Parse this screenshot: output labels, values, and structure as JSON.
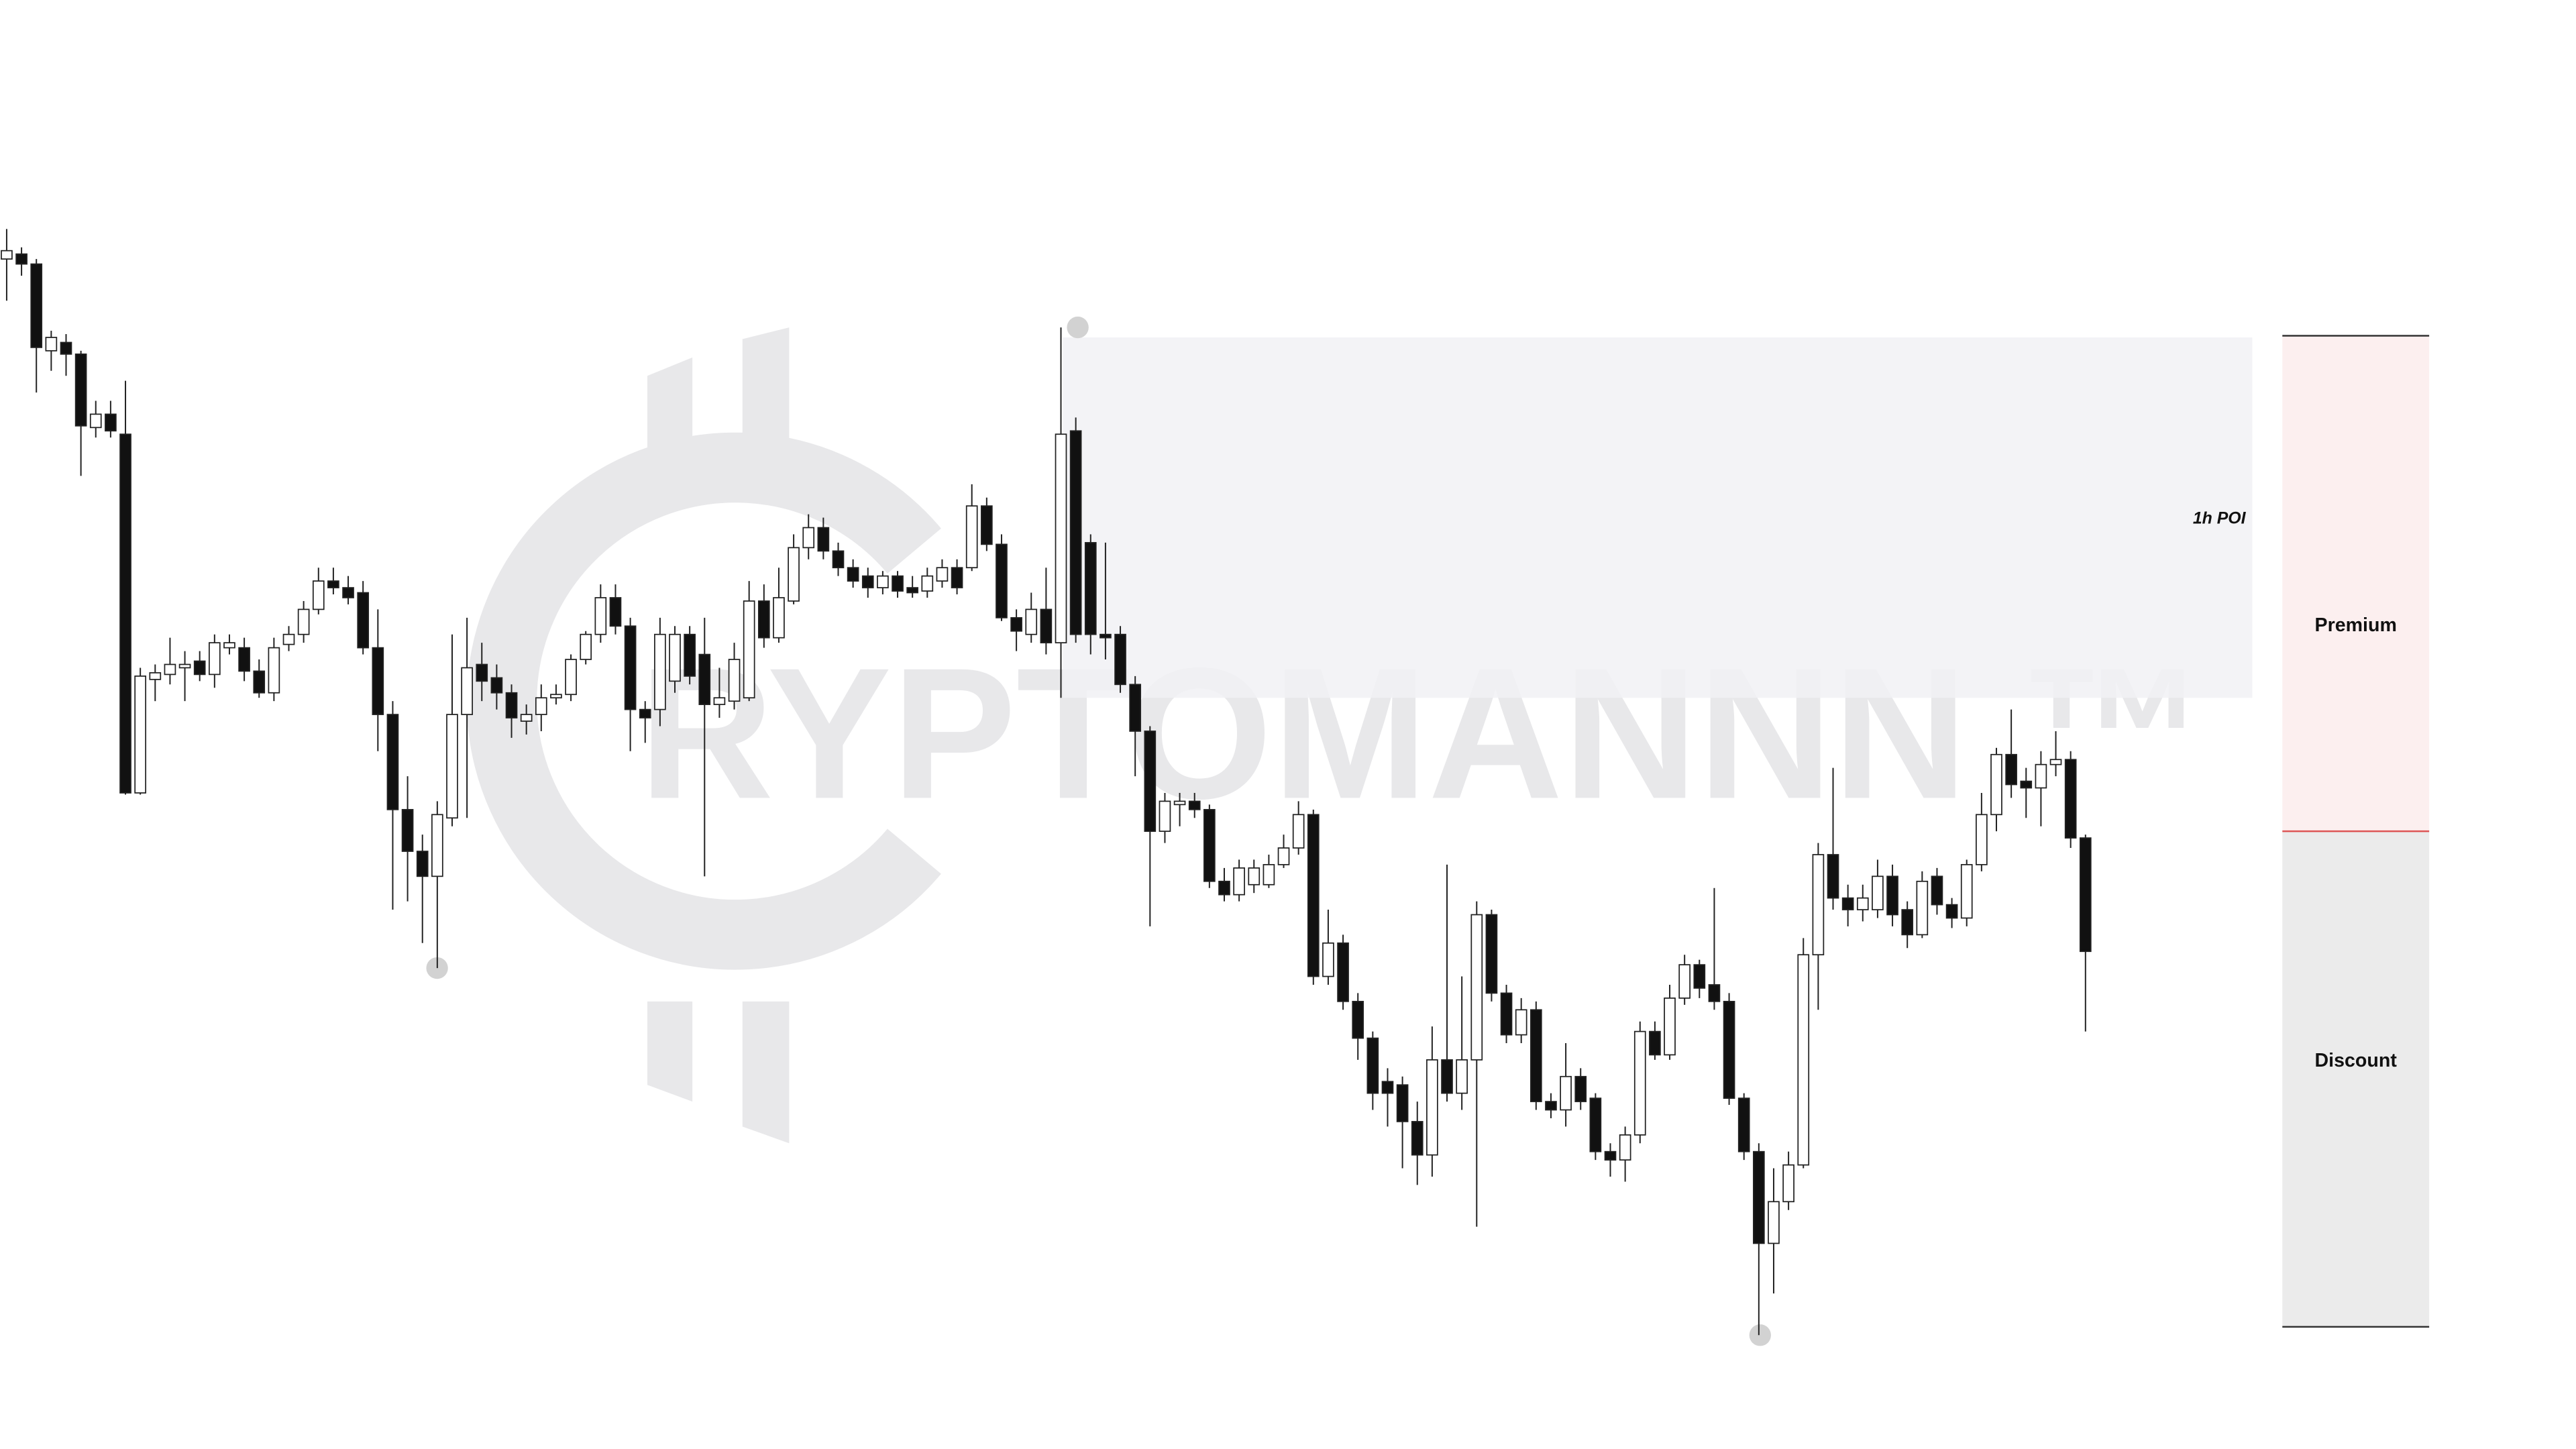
{
  "chart_data": {
    "type": "candlestick",
    "watermark": "RYPTOMANNN ™",
    "poi_label": "1h POI",
    "zones": [
      "Premium",
      "Discount"
    ],
    "up_color": "#ffffff",
    "down_color": "#111111",
    "wick_color": "#222222",
    "ylim": [
      0,
      868
    ],
    "ohlc": [
      [
        713,
        731,
        688,
        718
      ],
      [
        716,
        720,
        703,
        710
      ],
      [
        710,
        713,
        633,
        660
      ],
      [
        658,
        670,
        646,
        666
      ],
      [
        663,
        668,
        643,
        656
      ],
      [
        656,
        658,
        583,
        613
      ],
      [
        612,
        628,
        606,
        620
      ],
      [
        620,
        628,
        606,
        610
      ],
      [
        608,
        640,
        392,
        393
      ],
      [
        393,
        468,
        392,
        463
      ],
      [
        461,
        470,
        448,
        465
      ],
      [
        464,
        486,
        458,
        470
      ],
      [
        468,
        478,
        448,
        470
      ],
      [
        472,
        478,
        460,
        464
      ],
      [
        464,
        488,
        456,
        483
      ],
      [
        480,
        488,
        476,
        483
      ],
      [
        480,
        486,
        460,
        466
      ],
      [
        466,
        473,
        450,
        453
      ],
      [
        453,
        486,
        448,
        480
      ],
      [
        482,
        493,
        478,
        488
      ],
      [
        488,
        508,
        483,
        503
      ],
      [
        503,
        528,
        500,
        520
      ],
      [
        520,
        528,
        512,
        516
      ],
      [
        516,
        523,
        506,
        510
      ],
      [
        513,
        520,
        476,
        480
      ],
      [
        480,
        503,
        418,
        440
      ],
      [
        440,
        448,
        323,
        383
      ],
      [
        383,
        403,
        328,
        358
      ],
      [
        358,
        368,
        303,
        343
      ],
      [
        343,
        388,
        288,
        380
      ],
      [
        378,
        488,
        373,
        440
      ],
      [
        440,
        498,
        378,
        468
      ],
      [
        470,
        483,
        448,
        460
      ],
      [
        462,
        470,
        443,
        453
      ],
      [
        453,
        458,
        426,
        438
      ],
      [
        436,
        446,
        428,
        440
      ],
      [
        440,
        458,
        430,
        450
      ],
      [
        450,
        458,
        446,
        452
      ],
      [
        452,
        476,
        448,
        473
      ],
      [
        473,
        490,
        470,
        488
      ],
      [
        488,
        518,
        483,
        510
      ],
      [
        510,
        518,
        488,
        493
      ],
      [
        493,
        498,
        418,
        443
      ],
      [
        443,
        448,
        423,
        438
      ],
      [
        443,
        498,
        433,
        488
      ],
      [
        460,
        493,
        453,
        488
      ],
      [
        488,
        493,
        458,
        463
      ],
      [
        476,
        498,
        343,
        446
      ],
      [
        446,
        468,
        438,
        450
      ],
      [
        448,
        483,
        443,
        473
      ],
      [
        450,
        520,
        448,
        508
      ],
      [
        508,
        518,
        480,
        486
      ],
      [
        486,
        528,
        483,
        510
      ],
      [
        508,
        548,
        506,
        540
      ],
      [
        540,
        560,
        533,
        552
      ],
      [
        552,
        558,
        533,
        538
      ],
      [
        538,
        543,
        523,
        528
      ],
      [
        528,
        533,
        516,
        520
      ],
      [
        523,
        528,
        510,
        516
      ],
      [
        516,
        526,
        512,
        523
      ],
      [
        523,
        526,
        510,
        514
      ],
      [
        516,
        523,
        510,
        513
      ],
      [
        514,
        528,
        510,
        523
      ],
      [
        520,
        533,
        516,
        528
      ],
      [
        528,
        533,
        512,
        516
      ],
      [
        528,
        578,
        526,
        565
      ],
      [
        565,
        570,
        538,
        542
      ],
      [
        542,
        548,
        496,
        498
      ],
      [
        498,
        503,
        478,
        490
      ],
      [
        488,
        513,
        483,
        503
      ],
      [
        503,
        528,
        476,
        483
      ],
      [
        483,
        672,
        450,
        608
      ],
      [
        610,
        618,
        483,
        488
      ],
      [
        543,
        548,
        476,
        488
      ],
      [
        488,
        543,
        473,
        486
      ],
      [
        488,
        493,
        453,
        458
      ],
      [
        458,
        463,
        403,
        430
      ],
      [
        430,
        433,
        313,
        370
      ],
      [
        370,
        393,
        363,
        388
      ],
      [
        386,
        393,
        373,
        388
      ],
      [
        388,
        393,
        378,
        383
      ],
      [
        383,
        386,
        336,
        340
      ],
      [
        340,
        348,
        328,
        332
      ],
      [
        332,
        353,
        328,
        348
      ],
      [
        338,
        353,
        333,
        348
      ],
      [
        338,
        356,
        336,
        350
      ],
      [
        350,
        368,
        348,
        360
      ],
      [
        360,
        388,
        356,
        380
      ],
      [
        380,
        383,
        278,
        283
      ],
      [
        283,
        323,
        278,
        303
      ],
      [
        303,
        308,
        263,
        268
      ],
      [
        268,
        273,
        233,
        246
      ],
      [
        246,
        250,
        203,
        213
      ],
      [
        220,
        228,
        193,
        213
      ],
      [
        218,
        223,
        168,
        196
      ],
      [
        196,
        208,
        158,
        176
      ],
      [
        176,
        253,
        163,
        233
      ],
      [
        233,
        350,
        208,
        213
      ],
      [
        213,
        283,
        203,
        233
      ],
      [
        233,
        328,
        133,
        320
      ],
      [
        320,
        323,
        268,
        273
      ],
      [
        273,
        278,
        243,
        248
      ],
      [
        248,
        270,
        243,
        263
      ],
      [
        263,
        268,
        203,
        208
      ],
      [
        208,
        213,
        198,
        203
      ],
      [
        203,
        243,
        193,
        223
      ],
      [
        223,
        228,
        203,
        208
      ],
      [
        210,
        213,
        173,
        178
      ],
      [
        178,
        183,
        163,
        173
      ],
      [
        173,
        193,
        160,
        188
      ],
      [
        188,
        256,
        183,
        250
      ],
      [
        250,
        256,
        233,
        236
      ],
      [
        236,
        278,
        233,
        270
      ],
      [
        270,
        296,
        266,
        290
      ],
      [
        290,
        293,
        270,
        276
      ],
      [
        278,
        336,
        263,
        268
      ],
      [
        268,
        273,
        206,
        210
      ],
      [
        210,
        213,
        173,
        178
      ],
      [
        178,
        183,
        68,
        123
      ],
      [
        123,
        168,
        93,
        148
      ],
      [
        148,
        178,
        143,
        170
      ],
      [
        170,
        306,
        168,
        296
      ],
      [
        296,
        363,
        263,
        356
      ],
      [
        356,
        408,
        323,
        330
      ],
      [
        330,
        338,
        313,
        323
      ],
      [
        323,
        338,
        316,
        330
      ],
      [
        323,
        353,
        318,
        343
      ],
      [
        343,
        350,
        313,
        320
      ],
      [
        323,
        328,
        300,
        308
      ],
      [
        308,
        346,
        306,
        340
      ],
      [
        343,
        348,
        320,
        326
      ],
      [
        326,
        330,
        312,
        318
      ],
      [
        318,
        353,
        313,
        350
      ],
      [
        350,
        393,
        346,
        380
      ],
      [
        380,
        420,
        370,
        416
      ],
      [
        416,
        443,
        390,
        398
      ],
      [
        400,
        408,
        378,
        396
      ],
      [
        396,
        418,
        373,
        410
      ],
      [
        410,
        430,
        403,
        413
      ],
      [
        413,
        418,
        360,
        366
      ],
      [
        366,
        368,
        250,
        298
      ]
    ]
  }
}
